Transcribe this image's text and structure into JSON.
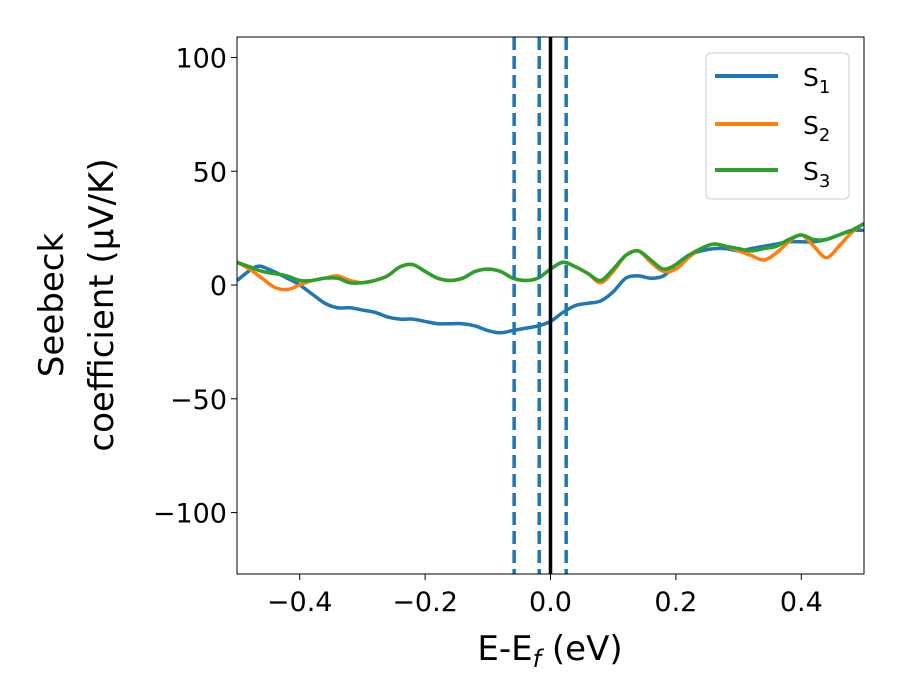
{
  "chart_data": {
    "type": "line",
    "xlabel": {
      "main": "E-E",
      "sub": "f",
      "unit": " (eV)"
    },
    "ylabel": {
      "line1": "Seebeck",
      "line2": "coefficient  (μV/K)"
    },
    "xlim": [
      -0.5,
      0.5
    ],
    "ylim": [
      -127,
      109
    ],
    "xticks": [
      -0.4,
      -0.2,
      0.0,
      0.2,
      0.4
    ],
    "xtick_labels": [
      "−0.4",
      "−0.2",
      "0.0",
      "0.2",
      "0.4"
    ],
    "yticks": [
      -100,
      -50,
      0,
      50,
      100
    ],
    "ytick_labels": [
      "−100",
      "−50",
      "0",
      "50",
      "100"
    ],
    "legend_position": "top-right",
    "colors": {
      "S1": "#1f77b4",
      "S2": "#ff7f0e",
      "S3": "#2ca02c",
      "fermi": "#000000"
    },
    "vlines_dashed": [
      -0.058,
      -0.018,
      0.025
    ],
    "vline_solid": 0.0,
    "series": [
      {
        "name": "S",
        "sub": "1",
        "color": "#1f77b4",
        "x": [
          -0.5,
          -0.47,
          -0.45,
          -0.42,
          -0.4,
          -0.38,
          -0.36,
          -0.34,
          -0.32,
          -0.3,
          -0.28,
          -0.26,
          -0.24,
          -0.22,
          -0.2,
          -0.18,
          -0.16,
          -0.14,
          -0.12,
          -0.1,
          -0.08,
          -0.06,
          -0.04,
          -0.02,
          0.0,
          0.02,
          0.04,
          0.06,
          0.08,
          0.1,
          0.12,
          0.14,
          0.16,
          0.18,
          0.2,
          0.22,
          0.24,
          0.26,
          0.28,
          0.3,
          0.32,
          0.34,
          0.36,
          0.38,
          0.4,
          0.42,
          0.44,
          0.46,
          0.48,
          0.5
        ],
        "y": [
          2,
          8,
          7,
          3,
          0,
          -4,
          -8,
          -10,
          -10,
          -11,
          -12,
          -14,
          -15,
          -15,
          -16,
          -17,
          -17,
          -17,
          -18,
          -20,
          -21,
          -20,
          -19,
          -18,
          -16,
          -12,
          -9,
          -8,
          -7,
          -3,
          3,
          4,
          3,
          4,
          9,
          13,
          15,
          16,
          16,
          15,
          16,
          17,
          18,
          19,
          19,
          19,
          20,
          22,
          24,
          24
        ]
      },
      {
        "name": "S",
        "sub": "2",
        "color": "#ff7f0e",
        "x": [
          -0.5,
          -0.48,
          -0.46,
          -0.44,
          -0.42,
          -0.4,
          -0.38,
          -0.36,
          -0.34,
          -0.32,
          -0.3,
          -0.28,
          -0.26,
          -0.24,
          -0.22,
          -0.2,
          -0.18,
          -0.16,
          -0.14,
          -0.12,
          -0.1,
          -0.08,
          -0.06,
          -0.04,
          -0.02,
          0.0,
          0.02,
          0.04,
          0.06,
          0.08,
          0.1,
          0.12,
          0.14,
          0.16,
          0.18,
          0.2,
          0.22,
          0.24,
          0.26,
          0.28,
          0.3,
          0.32,
          0.34,
          0.36,
          0.38,
          0.4,
          0.42,
          0.44,
          0.46,
          0.48,
          0.5
        ],
        "y": [
          10,
          7,
          3,
          -1,
          -2,
          0,
          2,
          3,
          4,
          2,
          1,
          2,
          4,
          8,
          9,
          6,
          3,
          2,
          3,
          6,
          7,
          6,
          3,
          2,
          3,
          7,
          10,
          8,
          5,
          1,
          6,
          13,
          15,
          10,
          6,
          7,
          12,
          16,
          18,
          17,
          15,
          13,
          11,
          14,
          19,
          22,
          17,
          12,
          17,
          23,
          27
        ]
      },
      {
        "name": "S",
        "sub": "3",
        "color": "#2ca02c",
        "x": [
          -0.5,
          -0.48,
          -0.46,
          -0.44,
          -0.42,
          -0.4,
          -0.38,
          -0.36,
          -0.34,
          -0.32,
          -0.3,
          -0.28,
          -0.26,
          -0.24,
          -0.22,
          -0.2,
          -0.18,
          -0.16,
          -0.14,
          -0.12,
          -0.1,
          -0.08,
          -0.06,
          -0.04,
          -0.02,
          0.0,
          0.02,
          0.04,
          0.06,
          0.08,
          0.1,
          0.12,
          0.14,
          0.16,
          0.18,
          0.2,
          0.22,
          0.24,
          0.26,
          0.28,
          0.3,
          0.32,
          0.34,
          0.36,
          0.38,
          0.4,
          0.42,
          0.44,
          0.46,
          0.48,
          0.5
        ],
        "y": [
          10,
          8,
          6,
          5,
          4,
          2,
          2,
          3,
          3,
          1,
          1,
          2,
          4,
          8,
          9,
          6,
          3,
          2,
          3,
          6,
          7,
          6,
          3,
          2,
          3,
          7,
          10,
          8,
          5,
          2,
          7,
          13,
          15,
          11,
          7,
          9,
          13,
          16,
          18,
          17,
          16,
          15,
          16,
          17,
          20,
          22,
          20,
          20,
          22,
          24,
          27
        ]
      }
    ]
  }
}
